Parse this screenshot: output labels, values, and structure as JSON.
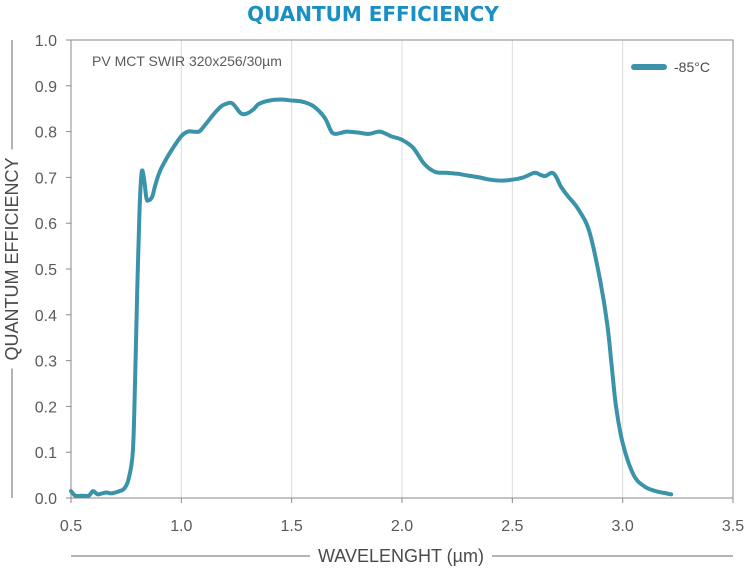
{
  "chart_data": {
    "type": "line",
    "title": "QUANTUM EFFICIENCY",
    "annotation": "PV MCT SWIR 320x256/30µm",
    "xlabel": "WAVELENGHT (µm)",
    "ylabel": "QUANTUM EFFICIENCY",
    "xlim": [
      0.5,
      3.5
    ],
    "ylim": [
      0.0,
      1.0
    ],
    "xticks": [
      "0.5",
      "1.0",
      "1.5",
      "2.0",
      "2.5",
      "3.0",
      "3.5"
    ],
    "yticks": [
      "0.0",
      "0.1",
      "0.2",
      "0.3",
      "0.4",
      "0.5",
      "0.6",
      "0.7",
      "0.8",
      "0.9",
      "1.0"
    ],
    "grid": "vertical",
    "legend_position": "top-right",
    "series": [
      {
        "name": "-85°C",
        "color": "#3a93a8",
        "x": [
          0.5,
          0.52,
          0.55,
          0.58,
          0.6,
          0.62,
          0.64,
          0.66,
          0.68,
          0.7,
          0.72,
          0.74,
          0.76,
          0.78,
          0.79,
          0.8,
          0.81,
          0.82,
          0.83,
          0.84,
          0.845,
          0.85,
          0.86,
          0.87,
          0.88,
          0.9,
          0.92,
          0.95,
          1.0,
          1.03,
          1.05,
          1.08,
          1.1,
          1.15,
          1.18,
          1.2,
          1.23,
          1.27,
          1.3,
          1.33,
          1.35,
          1.4,
          1.45,
          1.5,
          1.55,
          1.6,
          1.65,
          1.68,
          1.7,
          1.73,
          1.75,
          1.8,
          1.85,
          1.9,
          1.95,
          2.0,
          2.05,
          2.1,
          2.15,
          2.2,
          2.25,
          2.3,
          2.35,
          2.4,
          2.45,
          2.5,
          2.55,
          2.6,
          2.63,
          2.65,
          2.68,
          2.7,
          2.72,
          2.75,
          2.8,
          2.85,
          2.9,
          2.93,
          2.95,
          2.97,
          3.0,
          3.05,
          3.1,
          3.15,
          3.2,
          3.22
        ],
        "y": [
          0.015,
          0.005,
          0.005,
          0.005,
          0.015,
          0.008,
          0.01,
          0.012,
          0.01,
          0.012,
          0.015,
          0.02,
          0.04,
          0.1,
          0.25,
          0.45,
          0.62,
          0.71,
          0.7,
          0.66,
          0.65,
          0.65,
          0.652,
          0.66,
          0.68,
          0.71,
          0.73,
          0.755,
          0.79,
          0.8,
          0.8,
          0.8,
          0.81,
          0.84,
          0.855,
          0.86,
          0.862,
          0.84,
          0.84,
          0.85,
          0.86,
          0.868,
          0.87,
          0.868,
          0.865,
          0.855,
          0.83,
          0.8,
          0.795,
          0.798,
          0.8,
          0.798,
          0.795,
          0.8,
          0.79,
          0.782,
          0.765,
          0.73,
          0.712,
          0.71,
          0.708,
          0.704,
          0.7,
          0.695,
          0.693,
          0.695,
          0.7,
          0.71,
          0.705,
          0.703,
          0.71,
          0.7,
          0.68,
          0.66,
          0.63,
          0.58,
          0.47,
          0.38,
          0.29,
          0.2,
          0.12,
          0.05,
          0.025,
          0.015,
          0.01,
          0.008
        ]
      }
    ]
  }
}
